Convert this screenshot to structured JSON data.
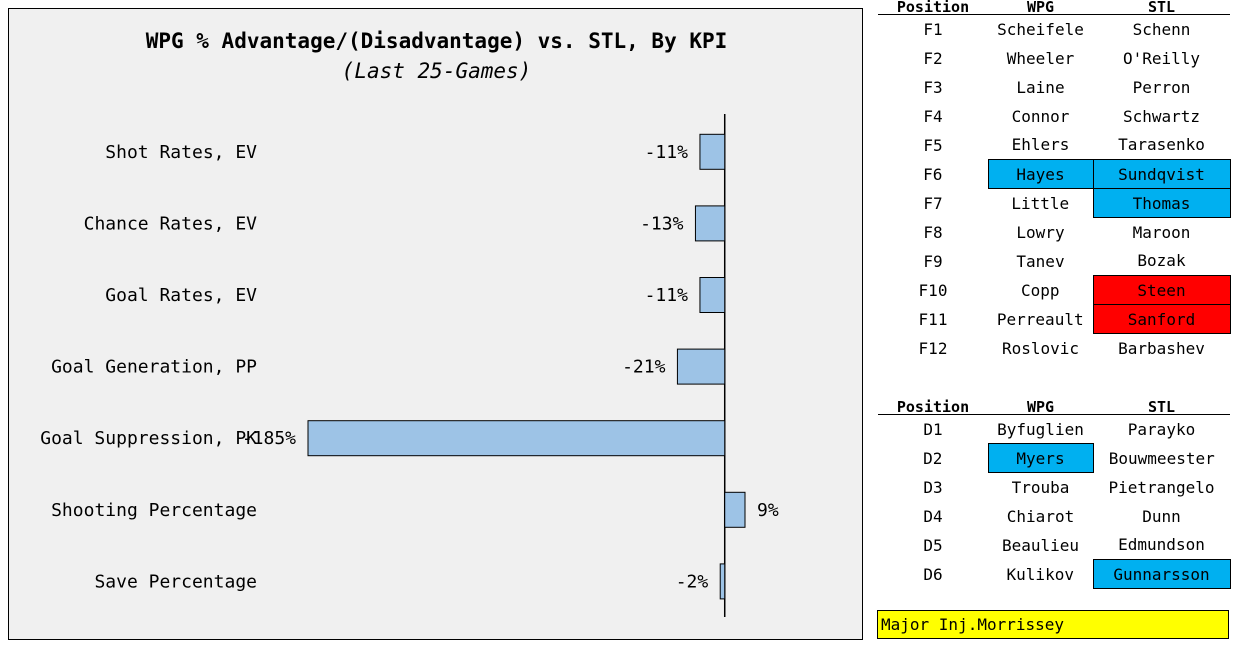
{
  "chart_data": {
    "type": "bar",
    "orientation": "horizontal",
    "title": "WPG % Advantage/(Disadvantage) vs. STL, By KPI",
    "subtitle": "(Last 25-Games)",
    "categories": [
      "Shot Rates, EV",
      "Chance Rates, EV",
      "Goal Rates, EV",
      "Goal Generation, PP",
      "Goal Suppression, PK",
      "Shooting Percentage",
      "Save Percentage"
    ],
    "values": [
      -11,
      -13,
      -11,
      -21,
      -185,
      9,
      -2
    ],
    "value_labels": [
      "-11%",
      "-13%",
      "-11%",
      "-21%",
      "-185%",
      "9%",
      "-2%"
    ],
    "xlim": [
      -185,
      9
    ],
    "bar_color": "#9dc3e6",
    "grid": false,
    "legend": "none"
  },
  "forwards": {
    "headers": {
      "position": "Position",
      "wpg": "WPG",
      "stl": "STL"
    },
    "rows": [
      {
        "pos": "F1",
        "wpg": "Scheifele",
        "stl": "Schenn"
      },
      {
        "pos": "F2",
        "wpg": "Wheeler",
        "stl": "O'Reilly"
      },
      {
        "pos": "F3",
        "wpg": "Laine",
        "stl": "Perron"
      },
      {
        "pos": "F4",
        "wpg": "Connor",
        "stl": "Schwartz"
      },
      {
        "pos": "F5",
        "wpg": "Ehlers",
        "stl": "Tarasenko"
      },
      {
        "pos": "F6",
        "wpg": "Hayes",
        "stl": "Sundqvist",
        "wpg_hl": "#00b0f0",
        "stl_hl": "#00b0f0"
      },
      {
        "pos": "F7",
        "wpg": "Little",
        "stl": "Thomas",
        "stl_hl": "#00b0f0"
      },
      {
        "pos": "F8",
        "wpg": "Lowry",
        "stl": "Maroon"
      },
      {
        "pos": "F9",
        "wpg": "Tanev",
        "stl": "Bozak"
      },
      {
        "pos": "F10",
        "wpg": "Copp",
        "stl": "Steen",
        "stl_hl": "#ff0000"
      },
      {
        "pos": "F11",
        "wpg": "Perreault",
        "stl": "Sanford",
        "stl_hl": "#ff0000"
      },
      {
        "pos": "F12",
        "wpg": "Roslovic",
        "stl": "Barbashev"
      }
    ]
  },
  "defense": {
    "headers": {
      "position": "Position",
      "wpg": "WPG",
      "stl": "STL"
    },
    "rows": [
      {
        "pos": "D1",
        "wpg": "Byfuglien",
        "stl": "Parayko"
      },
      {
        "pos": "D2",
        "wpg": "Myers",
        "stl": "Bouwmeester",
        "wpg_hl": "#00b0f0"
      },
      {
        "pos": "D3",
        "wpg": "Trouba",
        "stl": "Pietrangelo"
      },
      {
        "pos": "D4",
        "wpg": "Chiarot",
        "stl": "Dunn"
      },
      {
        "pos": "D5",
        "wpg": "Beaulieu",
        "stl": "Edmundson"
      },
      {
        "pos": "D6",
        "wpg": "Kulikov",
        "stl": "Gunnarsson",
        "stl_hl": "#00b0f0"
      }
    ]
  },
  "injury": {
    "text": "Major Inj.Morrissey",
    "color": "#ffff00"
  }
}
